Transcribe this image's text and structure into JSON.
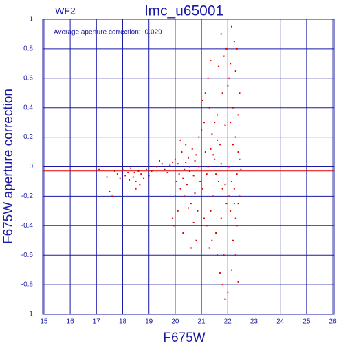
{
  "chart_data": {
    "type": "scatter",
    "title": "lmc_u65001",
    "subtitle": "WF2",
    "annotation": "Average aperture correction: -0.029",
    "x_label": "F675W",
    "y_label": "F675W aperture correction",
    "xlim": [
      14.95,
      26.05
    ],
    "ylim": [
      -1,
      1
    ],
    "xticks": [
      15,
      16,
      17,
      18,
      19,
      20,
      21,
      22,
      23,
      24,
      25,
      26
    ],
    "yticks": [
      -1,
      -0.8,
      -0.6,
      -0.4,
      -0.2,
      0,
      0.2,
      0.4,
      0.6,
      0.8,
      1
    ],
    "grid": true,
    "grid_color": "#1a1aa6",
    "text_color": "#1a1aa6",
    "color": "#e00000",
    "average": -0.029,
    "average_color": "#e00000",
    "x": [
      17.1,
      17.4,
      17.5,
      17.6,
      17.7,
      17.8,
      17.9,
      18.0,
      18.1,
      18.2,
      18.3,
      18.4,
      18.5,
      18.5,
      18.6,
      18.7,
      18.8,
      18.9,
      19.0,
      18.65,
      18.45,
      18.25,
      19.1,
      19.3,
      19.5,
      19.6,
      19.8,
      19.9,
      19.4,
      19.7,
      20.0,
      20.05,
      20.1,
      20.15,
      20.2,
      20.25,
      20.3,
      20.35,
      20.4,
      20.45,
      20.5,
      20.55,
      20.6,
      20.65,
      20.7,
      20.75,
      20.8,
      20.85,
      20.9,
      20.95,
      19.9,
      19.95,
      20.1,
      20.3,
      20.5,
      20.7,
      20.6,
      20.8,
      20.2,
      20.4,
      20.9,
      20.0,
      20.35,
      20.55,
      20.75,
      21.0,
      21.05,
      21.1,
      21.15,
      21.2,
      21.25,
      21.3,
      21.35,
      21.4,
      21.45,
      21.5,
      21.55,
      21.6,
      21.65,
      21.7,
      21.75,
      21.8,
      21.85,
      21.9,
      21.95,
      21.1,
      21.2,
      21.3,
      21.4,
      21.6,
      21.7,
      21.8,
      21.9,
      22.0,
      21.05,
      21.15,
      21.35,
      21.5,
      21.65,
      21.75,
      21.85,
      21.95,
      22.0,
      21.25,
      21.45,
      21.55,
      21.75,
      21.9,
      21.35,
      21.6,
      21.8,
      22.05,
      22.1,
      22.15,
      22.2,
      22.25,
      22.3,
      22.35,
      22.4,
      22.45,
      22.1,
      22.2,
      22.3,
      22.35,
      22.4,
      22.45,
      22.05,
      22.15,
      22.25,
      22.35,
      22.5,
      22.2,
      22.1,
      22.3,
      22.4,
      22.25,
      22.4,
      22.15,
      22.45,
      22.05,
      22.3
    ],
    "y": [
      -0.02,
      -0.07,
      -0.17,
      -0.2,
      -0.03,
      -0.05,
      -0.08,
      -0.02,
      -0.06,
      -0.04,
      -0.01,
      -0.07,
      -0.1,
      -0.15,
      -0.03,
      -0.05,
      -0.08,
      -0.02,
      -0.06,
      -0.12,
      -0.04,
      -0.09,
      -0.03,
      0.0,
      0.02,
      -0.02,
      0.01,
      0.03,
      0.04,
      -0.04,
      0.05,
      -0.1,
      0.02,
      -0.05,
      -0.15,
      0.1,
      -0.08,
      -0.2,
      0.03,
      -0.12,
      0.06,
      -0.03,
      -0.25,
      0.12,
      -0.06,
      -0.18,
      0.08,
      -0.3,
      0.0,
      -0.1,
      -0.35,
      -0.4,
      -0.3,
      -0.45,
      -0.28,
      -0.38,
      -0.55,
      -0.5,
      0.18,
      0.15,
      0.2,
      -0.2,
      -0.02,
      0.0,
      0.04,
      0.25,
      -0.15,
      0.3,
      0.1,
      -0.05,
      0.6,
      0.4,
      -0.3,
      0.22,
      -0.2,
      0.05,
      -0.45,
      0.35,
      -0.1,
      0.15,
      -0.35,
      0.5,
      -0.6,
      0.28,
      -0.25,
      -0.35,
      -0.4,
      -0.55,
      -0.5,
      -0.6,
      -0.72,
      -0.8,
      -0.9,
      -0.85,
      0.45,
      0.5,
      0.72,
      0.3,
      0.68,
      0.9,
      0.75,
      0.8,
      0.55,
      0.0,
      0.08,
      -0.05,
      0.02,
      -0.12,
      0.12,
      0.18,
      -0.15,
      0.6,
      0.7,
      0.95,
      0.4,
      0.85,
      0.2,
      0.8,
      0.1,
      0.5,
      -0.3,
      -0.5,
      -0.6,
      -0.4,
      -0.78,
      -0.2,
      0.0,
      -0.1,
      -0.15,
      -0.05,
      -0.02,
      0.15,
      0.3,
      0.65,
      0.35,
      -0.25,
      -0.25,
      -0.7,
      0.05,
      -0.2,
      -0.35
    ]
  }
}
